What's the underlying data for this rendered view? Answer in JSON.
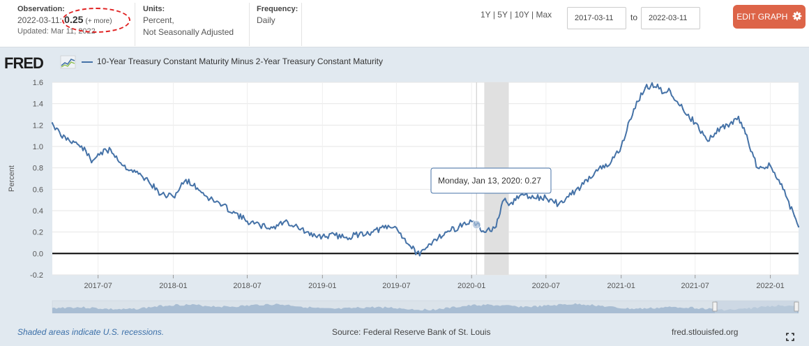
{
  "header": {
    "observation_label": "Observation:",
    "observation_date": "2022-03-11",
    "observation_value": "0.25",
    "more_link": "(+ more)",
    "updated": "Updated: Mar 11, 2022",
    "units_label": "Units:",
    "units_line1": "Percent,",
    "units_line2": "Not Seasonally Adjusted",
    "frequency_label": "Frequency:",
    "frequency_value": "Daily",
    "range_1y": "1Y",
    "range_5y": "5Y",
    "range_10y": "10Y",
    "range_max": "Max",
    "range_sep": "|",
    "date_from": "2017-03-11",
    "date_to": "2022-03-11",
    "to_label": "to",
    "edit_button": "EDIT GRAPH"
  },
  "logo_text": "FRED",
  "footer": {
    "note": "Shaded areas indicate U.S. recessions.",
    "source": "Source: Federal Reserve Bank of St. Louis",
    "link": "fred.stlouisfed.org"
  },
  "colors": {
    "series": "#4572a7",
    "accent": "#dd6448",
    "recession": "#e0e0e0"
  },
  "tooltip": {
    "date": "Monday, Jan 13, 2020:",
    "value": "0.27"
  },
  "chart_data": {
    "type": "line",
    "title": "10-Year Treasury Constant Maturity Minus 2-Year Treasury Constant Maturity",
    "xlabel": "",
    "ylabel": "Percent",
    "ylim": [
      -0.2,
      1.6
    ],
    "yticks": [
      -0.2,
      0.0,
      0.2,
      0.4,
      0.6,
      0.8,
      1.0,
      1.2,
      1.4,
      1.6
    ],
    "xlim": [
      "2017-03-11",
      "2022-03-11"
    ],
    "xticks": [
      "2017-07",
      "2018-01",
      "2018-07",
      "2019-01",
      "2019-07",
      "2020-01",
      "2020-07",
      "2021-01",
      "2021-07",
      "2022-01"
    ],
    "recession": [
      "2020-02",
      "2020-04"
    ],
    "series": [
      {
        "name": "10-Year Treasury Constant Maturity Minus 2-Year Treasury Constant Maturity",
        "x": [
          "2017-03-11",
          "2017-04-01",
          "2017-05-01",
          "2017-06-01",
          "2017-06-15",
          "2017-07-01",
          "2017-08-01",
          "2017-09-01",
          "2017-10-01",
          "2017-11-01",
          "2017-12-01",
          "2018-01-01",
          "2018-02-01",
          "2018-03-01",
          "2018-04-01",
          "2018-05-01",
          "2018-06-01",
          "2018-07-01",
          "2018-08-01",
          "2018-09-01",
          "2018-10-01",
          "2018-11-01",
          "2018-12-01",
          "2019-01-01",
          "2019-02-01",
          "2019-03-01",
          "2019-04-01",
          "2019-05-01",
          "2019-06-01",
          "2019-07-01",
          "2019-08-01",
          "2019-08-27",
          "2019-09-15",
          "2019-10-01",
          "2019-11-01",
          "2019-12-01",
          "2020-01-01",
          "2020-01-13",
          "2020-02-01",
          "2020-03-01",
          "2020-03-20",
          "2020-04-01",
          "2020-05-01",
          "2020-06-01",
          "2020-07-01",
          "2020-08-01",
          "2020-09-01",
          "2020-10-01",
          "2020-11-01",
          "2020-12-01",
          "2021-01-01",
          "2021-02-01",
          "2021-03-01",
          "2021-03-31",
          "2021-04-15",
          "2021-05-01",
          "2021-06-01",
          "2021-07-01",
          "2021-08-01",
          "2021-09-01",
          "2021-10-01",
          "2021-10-15",
          "2021-11-01",
          "2021-12-01",
          "2022-01-01",
          "2022-02-01",
          "2022-03-01",
          "2022-03-11"
        ],
        "values": [
          1.22,
          1.1,
          1.05,
          0.96,
          0.85,
          0.93,
          0.97,
          0.82,
          0.76,
          0.68,
          0.55,
          0.53,
          0.69,
          0.61,
          0.51,
          0.45,
          0.38,
          0.3,
          0.26,
          0.24,
          0.3,
          0.25,
          0.17,
          0.16,
          0.17,
          0.15,
          0.18,
          0.2,
          0.24,
          0.24,
          0.08,
          -0.02,
          0.06,
          0.13,
          0.2,
          0.25,
          0.3,
          0.27,
          0.2,
          0.25,
          0.5,
          0.45,
          0.55,
          0.52,
          0.52,
          0.46,
          0.55,
          0.65,
          0.78,
          0.82,
          1.0,
          1.35,
          1.55,
          1.58,
          1.5,
          1.52,
          1.35,
          1.22,
          1.05,
          1.18,
          1.21,
          1.28,
          1.12,
          0.8,
          0.82,
          0.6,
          0.35,
          0.25
        ]
      }
    ]
  }
}
